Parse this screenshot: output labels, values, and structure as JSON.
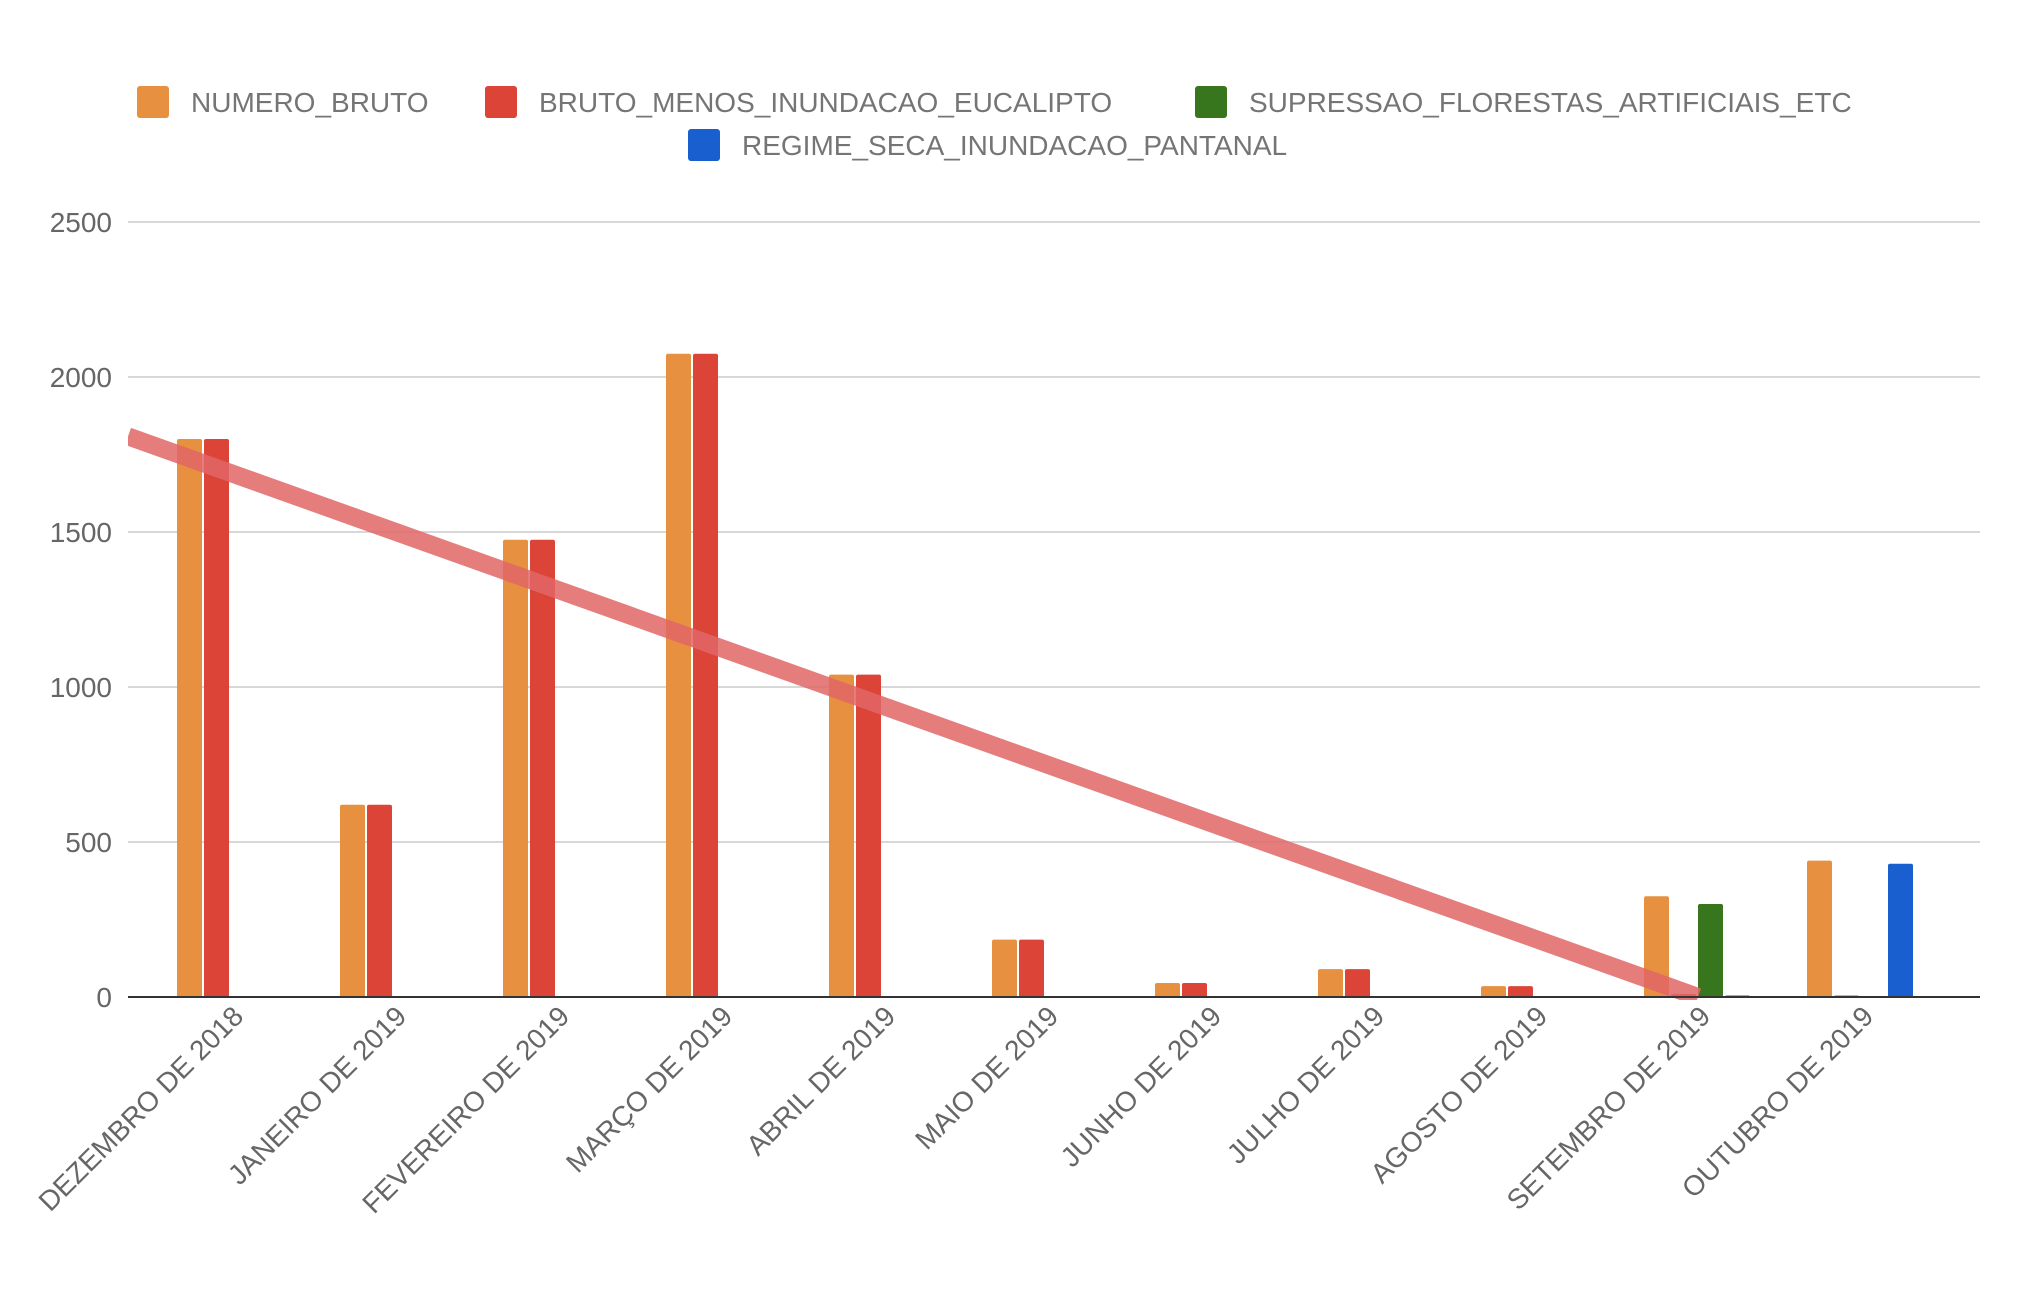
{
  "chart_data": {
    "type": "bar",
    "title": "",
    "xlabel": "",
    "ylabel": "",
    "ylim": [
      0,
      2500
    ],
    "yticks": [
      0,
      500,
      1000,
      1500,
      2000,
      2500
    ],
    "grid": true,
    "legend_position": "top",
    "categories": [
      "DEZEMBRO DE 2018",
      "JANEIRO DE 2019",
      "FEVEREIRO DE 2019",
      "MARÇO DE 2019",
      "ABRIL DE 2019",
      "MAIO DE 2019",
      "JUNHO DE 2019",
      "JULHO DE 2019",
      "AGOSTO DE 2019",
      "SETEMBRO DE 2019",
      "OUTUBRO DE 2019"
    ],
    "series": [
      {
        "name": "NUMERO_BRUTO",
        "color": "#e69040",
        "values": [
          1800,
          620,
          1475,
          2075,
          1040,
          185,
          45,
          90,
          35,
          325,
          440
        ]
      },
      {
        "name": "BRUTO_MENOS_INUNDACAO_EUCALIPTO",
        "color": "#db4437",
        "values": [
          1800,
          620,
          1475,
          2075,
          1040,
          185,
          45,
          90,
          35,
          10,
          5
        ]
      },
      {
        "name": "SUPRESSAO_FLORESTAS_ARTIFICIAIS_ETC",
        "color": "#38761d",
        "values": [
          0,
          0,
          0,
          0,
          0,
          0,
          0,
          0,
          0,
          300,
          0
        ]
      },
      {
        "name": "REGIME_SECA_INUNDACAO_PANTANAL",
        "color": "#1a5fd0",
        "values": [
          0,
          0,
          0,
          0,
          0,
          0,
          0,
          0,
          0,
          5,
          430
        ]
      }
    ],
    "trendline": {
      "series": "BRUTO_MENOS_INUNDACAO_EUCALIPTO",
      "type": "linear",
      "color": "#e06666",
      "start": {
        "x": "DEZEMBRO DE 2018",
        "y": 1690
      },
      "end": {
        "x": "SETEMBRO DE 2019",
        "y": 0
      }
    }
  }
}
